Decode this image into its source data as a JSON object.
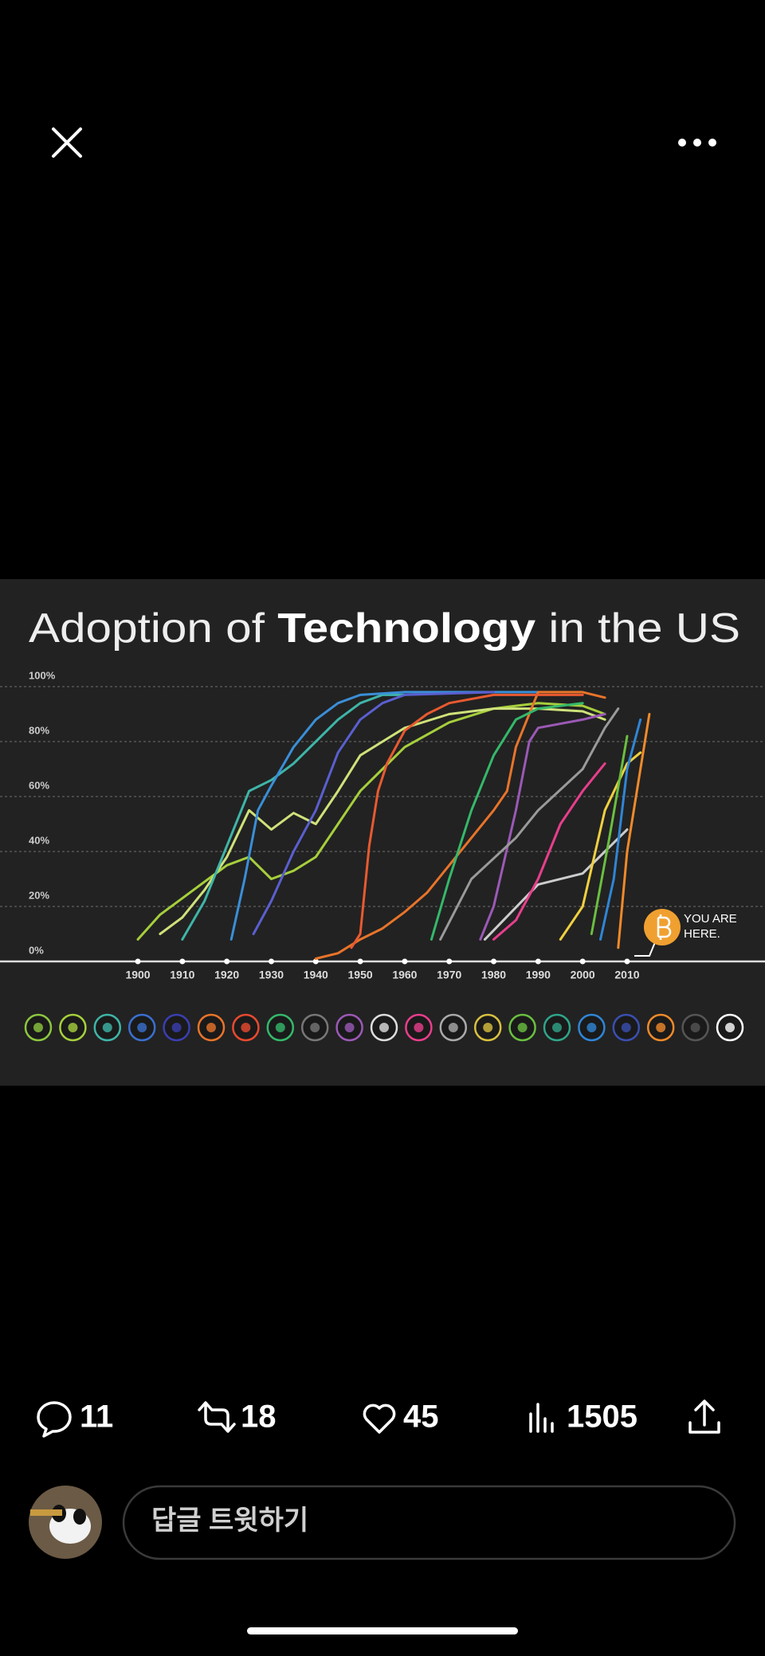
{
  "chart_data": {
    "type": "line",
    "title": {
      "before": "Adoption of ",
      "bold": "Technology",
      "after": " in the US"
    },
    "xlim": [
      1869,
      2041
    ],
    "ylim": [
      0,
      100
    ],
    "xticks": [
      1900,
      1910,
      1920,
      1930,
      1940,
      1950,
      1960,
      1970,
      1980,
      1990,
      2000,
      2010
    ],
    "yticks": [
      {
        "value": 0,
        "label": "0%"
      },
      {
        "value": 20,
        "label": "20%"
      },
      {
        "value": 40,
        "label": "40%"
      },
      {
        "value": 60,
        "label": "60%"
      },
      {
        "value": 80,
        "label": "80%"
      },
      {
        "value": 100,
        "label": "100%"
      }
    ],
    "grid": true,
    "annotation": [
      "YOU ARE",
      "HERE."
    ],
    "series": [
      {
        "color": "#a6cf3c",
        "x": [
          1900,
          1905,
          1910,
          1920,
          1925,
          1930,
          1935,
          1940,
          1945,
          1950,
          1955,
          1960,
          1970,
          1980,
          1990,
          2000,
          2005
        ],
        "values": [
          8,
          17,
          23,
          35,
          38,
          30,
          33,
          38,
          50,
          62,
          70,
          78,
          87,
          92,
          94,
          93,
          90
        ]
      },
      {
        "color": "#cfe27a",
        "x": [
          1905,
          1910,
          1915,
          1920,
          1925,
          1930,
          1935,
          1940,
          1945,
          1950,
          1955,
          1960,
          1970,
          1980,
          1990,
          2000,
          2005
        ],
        "values": [
          10,
          16,
          26,
          38,
          55,
          48,
          54,
          50,
          62,
          75,
          80,
          85,
          90,
          92,
          92,
          91,
          88
        ]
      },
      {
        "color": "#3fb5a8",
        "x": [
          1910,
          1915,
          1920,
          1925,
          1930,
          1935,
          1940,
          1945,
          1950,
          1955,
          1960
        ],
        "values": [
          8,
          22,
          42,
          62,
          66,
          72,
          80,
          88,
          94,
          97,
          97
        ]
      },
      {
        "color": "#3a8fd8",
        "x": [
          1921,
          1924,
          1927,
          1930,
          1935,
          1940,
          1945,
          1950,
          1960,
          1990
        ],
        "values": [
          8,
          30,
          55,
          64,
          78,
          88,
          94,
          97,
          98,
          98
        ]
      },
      {
        "color": "#5a5fd0",
        "x": [
          1926,
          1930,
          1935,
          1940,
          1945,
          1950,
          1955,
          1960,
          1980
        ],
        "values": [
          10,
          22,
          40,
          55,
          76,
          88,
          94,
          97,
          98
        ]
      },
      {
        "color": "#e8742a",
        "x": [
          1940,
          1945,
          1950,
          1955,
          1960,
          1965,
          1970,
          1975,
          1980,
          1983,
          1985,
          1990,
          2000,
          2005
        ],
        "values": [
          1,
          3,
          8,
          12,
          18,
          25,
          35,
          45,
          55,
          62,
          78,
          98,
          98,
          96
        ]
      },
      {
        "color": "#e85a30",
        "x": [
          1948,
          1950,
          1952,
          1954,
          1956,
          1960,
          1965,
          1970,
          1980,
          2000
        ],
        "values": [
          5,
          10,
          42,
          62,
          72,
          84,
          90,
          94,
          97,
          97
        ]
      },
      {
        "color": "#35b86a",
        "x": [
          1966,
          1970,
          1975,
          1980,
          1985,
          1990,
          2000
        ],
        "values": [
          8,
          30,
          55,
          75,
          88,
          92,
          94
        ]
      },
      {
        "color": "#9b59b6",
        "x": [
          1977,
          1980,
          1985,
          1988,
          1990,
          2000,
          2005
        ],
        "values": [
          8,
          20,
          55,
          80,
          85,
          88,
          90
        ]
      },
      {
        "color": "#9a9a9a",
        "x": [
          1968,
          1975,
          1985,
          1990,
          2000,
          2005,
          2008
        ],
        "values": [
          8,
          30,
          45,
          55,
          70,
          85,
          92
        ]
      },
      {
        "color": "#cccccc",
        "x": [
          1978,
          1990,
          2000,
          2005,
          2010
        ],
        "values": [
          8,
          28,
          32,
          40,
          48
        ]
      },
      {
        "color": "#e83e8c",
        "x": [
          1980,
          1985,
          1990,
          1995,
          2000,
          2005
        ],
        "values": [
          8,
          15,
          30,
          50,
          62,
          72
        ]
      },
      {
        "color": "#f0d040",
        "x": [
          1995,
          2000,
          2005,
          2010,
          2013
        ],
        "values": [
          8,
          20,
          55,
          72,
          76
        ]
      },
      {
        "color": "#6abf40",
        "x": [
          2002,
          2006,
          2010
        ],
        "values": [
          10,
          45,
          82
        ]
      },
      {
        "color": "#2f86d6",
        "x": [
          2004,
          2007,
          2010,
          2013
        ],
        "values": [
          8,
          30,
          70,
          88
        ]
      },
      {
        "color": "#f08a2a",
        "x": [
          2008,
          2010,
          2013,
          2015
        ],
        "values": [
          5,
          40,
          70,
          90
        ]
      }
    ]
  },
  "actions": {
    "replies": 11,
    "retweets": 18,
    "likes": 45,
    "views": 1505
  },
  "reply_placeholder": "답글 트윗하기"
}
